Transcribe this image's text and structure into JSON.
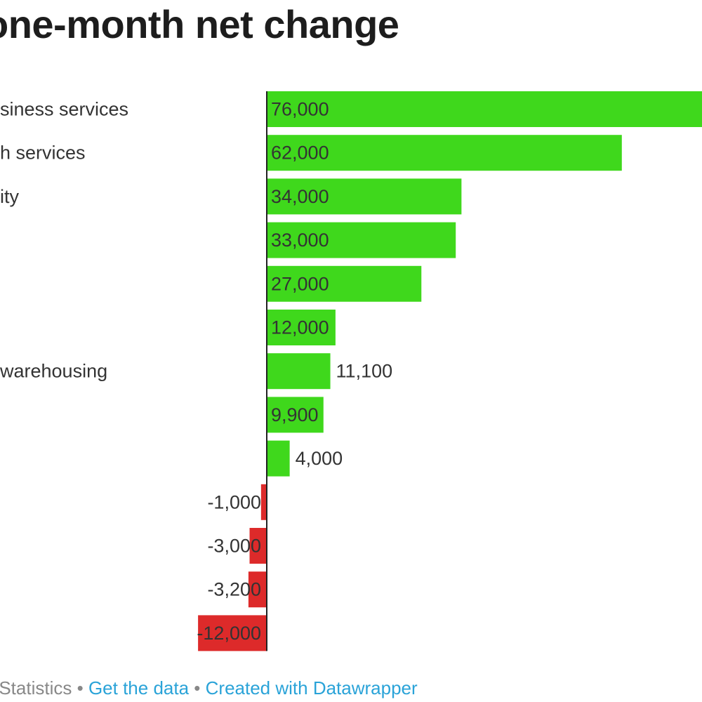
{
  "chart_data": {
    "type": "bar",
    "orientation": "horizontal",
    "title": "one-month net change",
    "categories": [
      "business services",
      "health services",
      "city",
      "",
      "",
      "",
      "warehousing",
      "",
      "",
      "",
      "",
      "",
      ""
    ],
    "values": [
      76000,
      62000,
      34000,
      33000,
      27000,
      12000,
      11100,
      9900,
      4000,
      -1000,
      -3000,
      -3200,
      -12000
    ],
    "value_labels": [
      "76,000",
      "62,000",
      "34,000",
      "33,000",
      "27,000",
      "12,000",
      "11,100",
      "9,900",
      "4,000",
      "-1,000",
      "-3,000",
      "-3,200",
      "-12,000"
    ],
    "category_labels_visible": [
      "siness services",
      "h services",
      "ity",
      "",
      "",
      "",
      "warehousing",
      "",
      "",
      "",
      "",
      "",
      ""
    ],
    "xlim": [
      -12000,
      52000
    ],
    "positive_color": "#3fd81c",
    "negative_color": "#dd2a2a"
  },
  "footer": {
    "source": "or Statistics",
    "sep1": "•",
    "get_data": "Get the data",
    "sep2": "•",
    "created_with": "Created with Datawrapper"
  },
  "colors": {
    "link": "#2aa3d8",
    "source": "#888888"
  }
}
